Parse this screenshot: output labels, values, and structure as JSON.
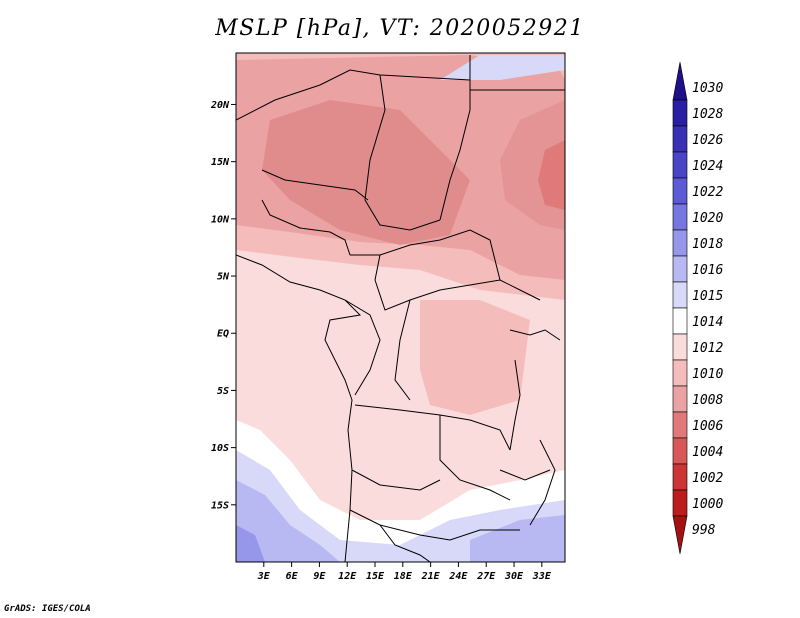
{
  "title": "MSLP [hPa], VT: 2020052921",
  "footer": "GrADS: IGES/COLA",
  "axes": {
    "lat_ticks": [
      "20N",
      "15N",
      "10N",
      "5N",
      "EQ",
      "5S",
      "10S",
      "15S"
    ],
    "lon_ticks": [
      "3E",
      "6E",
      "9E",
      "12E",
      "15E",
      "18E",
      "21E",
      "24E",
      "27E",
      "30E",
      "33E"
    ],
    "lat_range": [
      -20,
      24.5
    ],
    "lon_range": [
      0,
      35.5
    ]
  },
  "colorbar": {
    "levels": [
      "1030",
      "1028",
      "1026",
      "1024",
      "1022",
      "1020",
      "1018",
      "1016",
      "1015",
      "1014",
      "1012",
      "1010",
      "1008",
      "1006",
      "1004",
      "1002",
      "1000",
      "998"
    ],
    "colors": [
      "#1f0f8a",
      "#2a1ea2",
      "#3a30b6",
      "#4a44c6",
      "#5c5ad4",
      "#7676e0",
      "#9696ea",
      "#b8b8f2",
      "#d8d8f8",
      "#ffffff",
      "#fbdcdc",
      "#f5bcbc",
      "#eba2a2",
      "#e07a7a",
      "#d85858",
      "#cc3535",
      "#bb1d1d",
      "#a51010"
    ]
  }
}
